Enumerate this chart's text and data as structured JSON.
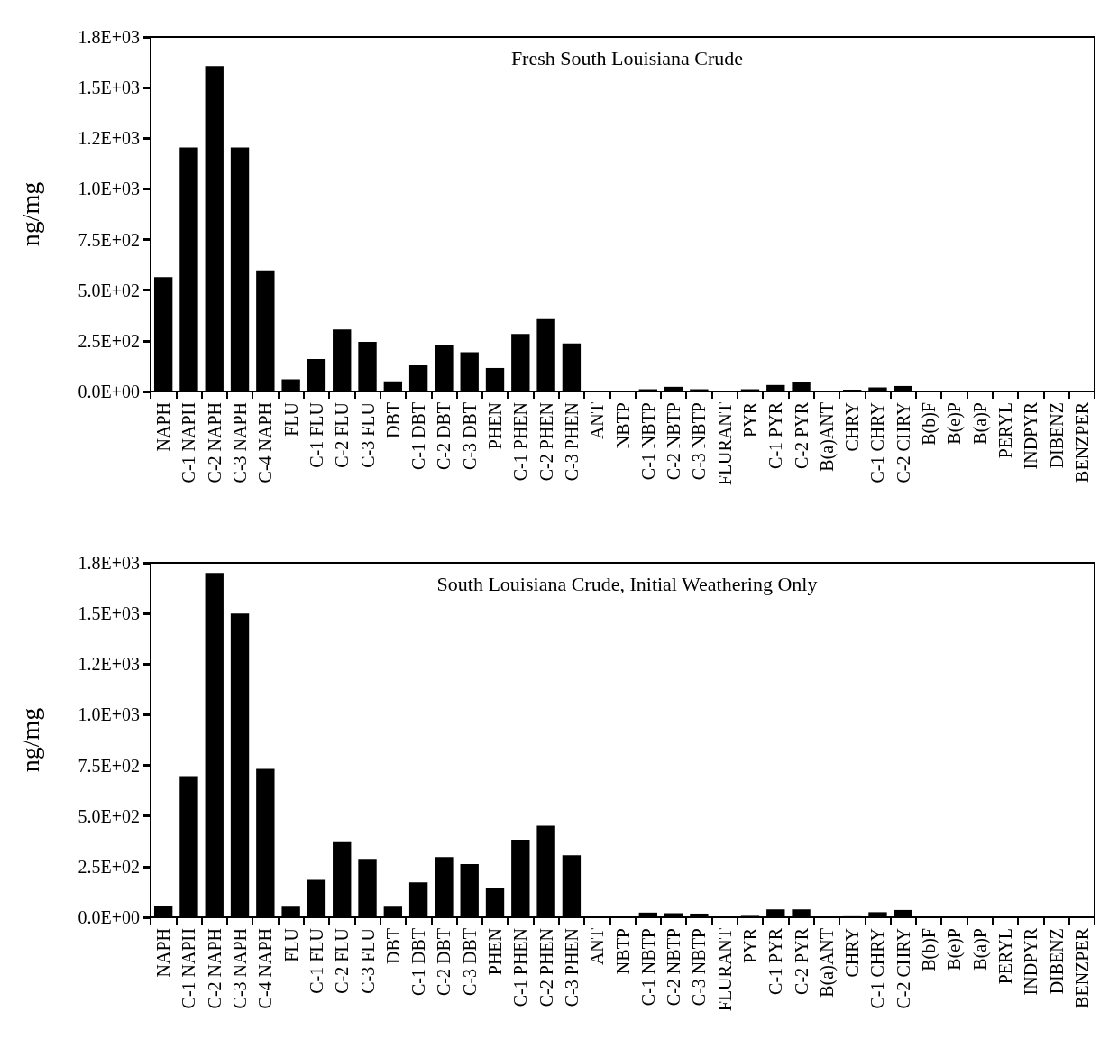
{
  "chart_data": [
    {
      "type": "bar",
      "title": "Fresh South Louisiana Crude",
      "ylabel": "ng/mg",
      "color": "#000000",
      "grid": false,
      "categories": [
        "NAPH",
        "C-1 NAPH",
        "C-2 NAPH",
        "C-3 NAPH",
        "C-4 NAPH",
        "FLU",
        "C-1 FLU",
        "C-2 FLU",
        "C-3 FLU",
        "DBT",
        "C-1 DBT",
        "C-2 DBT",
        "C-3 DBT",
        "PHEN",
        "C-1 PHEN",
        "C-2 PHEN",
        "C-3 PHEN",
        "ANT",
        "NBTP",
        "C-1 NBTP",
        "C-2 NBTP",
        "C-3 NBTP",
        "FLURANT",
        "PYR",
        "C-1 PYR",
        "C-2 PYR",
        "B(a)ANT",
        "CHRY",
        "C-1 CHRY",
        "C-2 CHRY",
        "B(b)F",
        "B(e)P",
        "B(a)P",
        "PERYL",
        "INDPYR",
        "DIBENZ",
        "BENZPER"
      ],
      "values": [
        564,
        1205,
        1606,
        1205,
        598,
        60,
        160,
        306,
        245,
        50,
        129,
        232,
        194,
        116,
        284,
        357,
        237,
        2,
        2,
        11,
        23,
        11,
        2,
        11,
        32,
        45,
        2,
        9,
        20,
        27,
        2,
        1,
        1,
        0,
        1,
        0,
        0
      ],
      "ylim": [
        0,
        1750
      ],
      "yticks": [
        {
          "value": 0,
          "label": "0.0E+00"
        },
        {
          "value": 250,
          "label": "2.5E+02"
        },
        {
          "value": 500,
          "label": "5.0E+02"
        },
        {
          "value": 750,
          "label": "7.5E+02"
        },
        {
          "value": 1000,
          "label": "1.0E+03"
        },
        {
          "value": 1250,
          "label": "1.2E+03"
        },
        {
          "value": 1500,
          "label": "1.5E+03"
        },
        {
          "value": 1750,
          "label": "1.8E+03"
        }
      ]
    },
    {
      "type": "bar",
      "title": "South Louisiana Crude, Initial Weathering Only",
      "ylabel": "ng/mg",
      "color": "#000000",
      "grid": false,
      "categories": [
        "NAPH",
        "C-1 NAPH",
        "C-2 NAPH",
        "C-3 NAPH",
        "C-4 NAPH",
        "FLU",
        "C-1 FLU",
        "C-2 FLU",
        "C-3 FLU",
        "DBT",
        "C-1 DBT",
        "C-2 DBT",
        "C-3 DBT",
        "PHEN",
        "C-1 PHEN",
        "C-2 PHEN",
        "C-3 PHEN",
        "ANT",
        "NBTP",
        "C-1 NBTP",
        "C-2 NBTP",
        "C-3 NBTP",
        "FLURANT",
        "PYR",
        "C-1 PYR",
        "C-2 PYR",
        "B(a)ANT",
        "CHRY",
        "C-1 CHRY",
        "C-2 CHRY",
        "B(b)F",
        "B(e)P",
        "B(a)P",
        "PERYL",
        "INDPYR",
        "DIBENZ",
        "BENZPER"
      ],
      "values": [
        55,
        697,
        1700,
        1500,
        732,
        52,
        185,
        375,
        288,
        52,
        172,
        297,
        263,
        146,
        383,
        452,
        306,
        0,
        2,
        23,
        20,
        18,
        0,
        7,
        39,
        39,
        0,
        5,
        25,
        36,
        0,
        0,
        0,
        0,
        0,
        0,
        0
      ],
      "ylim": [
        0,
        1750
      ],
      "yticks": [
        {
          "value": 0,
          "label": "0.0E+00"
        },
        {
          "value": 250,
          "label": "2.5E+02"
        },
        {
          "value": 500,
          "label": "5.0E+02"
        },
        {
          "value": 750,
          "label": "7.5E+02"
        },
        {
          "value": 1000,
          "label": "1.0E+03"
        },
        {
          "value": 1250,
          "label": "1.2E+03"
        },
        {
          "value": 1500,
          "label": "1.5E+03"
        },
        {
          "value": 1750,
          "label": "1.8E+03"
        }
      ]
    }
  ]
}
